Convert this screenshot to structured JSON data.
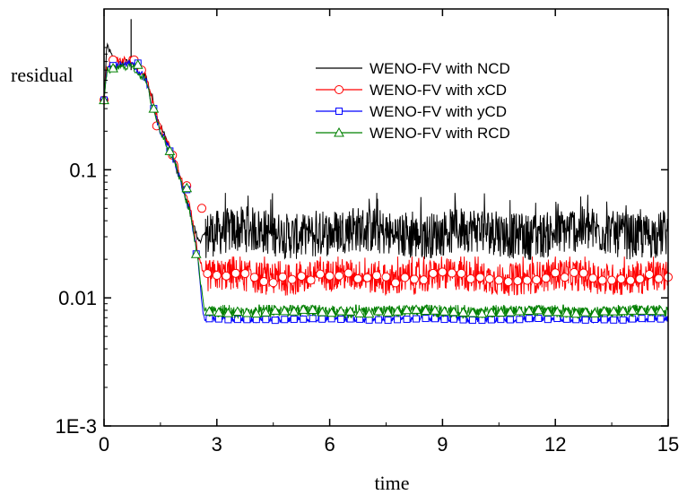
{
  "chart_data": {
    "type": "line",
    "title": "",
    "xlabel": "time",
    "ylabel": "residual",
    "xlim": [
      0,
      15
    ],
    "ylim": [
      0.001,
      1.8
    ],
    "yscale": "log",
    "xticks": [
      0,
      3,
      6,
      9,
      12,
      15
    ],
    "xtick_labels": [
      "0",
      "3",
      "6",
      "9",
      "12",
      "15"
    ],
    "yticks": [
      0.001,
      0.01,
      0.1
    ],
    "ytick_labels": [
      "1E-3",
      "0.01",
      "0.1"
    ],
    "grid": false,
    "legend_position": "top-right",
    "series": [
      {
        "name": "WENO-FV with NCD",
        "color": "#000000",
        "marker": "none",
        "transition": [
          [
            0,
            0.35
          ],
          [
            0.08,
            0.95
          ],
          [
            0.3,
            0.65
          ],
          [
            0.72,
            0.7
          ],
          [
            1.1,
            0.55
          ],
          [
            1.3,
            0.35
          ],
          [
            1.5,
            0.22
          ],
          [
            1.7,
            0.16
          ],
          [
            1.9,
            0.11
          ],
          [
            2.1,
            0.07
          ],
          [
            2.3,
            0.045
          ],
          [
            2.5,
            0.028
          ],
          [
            2.65,
            0.03
          ]
        ],
        "spikes": [
          [
            0.0,
            1.6
          ],
          [
            0.72,
            1.5
          ]
        ],
        "plateau": {
          "start": 2.7,
          "level": 0.032,
          "spread": 0.4,
          "max": 0.066
        }
      },
      {
        "name": "WENO-FV with xCD",
        "color": "#ff0000",
        "marker": "circle",
        "transition": [
          [
            0,
            0.35
          ],
          [
            0.08,
            0.65
          ],
          [
            0.3,
            0.7
          ],
          [
            0.72,
            0.72
          ],
          [
            1.1,
            0.55
          ],
          [
            1.3,
            0.33
          ],
          [
            1.5,
            0.21
          ],
          [
            1.7,
            0.16
          ],
          [
            1.9,
            0.12
          ],
          [
            2.1,
            0.075
          ],
          [
            2.3,
            0.048
          ],
          [
            2.5,
            0.022
          ],
          [
            2.65,
            0.015
          ]
        ],
        "plateau": {
          "start": 2.7,
          "level": 0.0145,
          "spread": 0.28,
          "max": 0.021
        },
        "markers_transition": [
          [
            0.0,
            0.35
          ],
          [
            0.24,
            0.72
          ],
          [
            0.8,
            0.72
          ],
          [
            1.0,
            0.6
          ],
          [
            1.4,
            0.22
          ],
          [
            1.82,
            0.13
          ],
          [
            2.2,
            0.075
          ],
          [
            2.6,
            0.05
          ]
        ]
      },
      {
        "name": "WENO-FV with yCD",
        "color": "#0000ff",
        "marker": "square",
        "transition": [
          [
            0,
            0.35
          ],
          [
            0.08,
            0.62
          ],
          [
            0.3,
            0.65
          ],
          [
            0.72,
            0.68
          ],
          [
            1.1,
            0.52
          ],
          [
            1.3,
            0.3
          ],
          [
            1.5,
            0.2
          ],
          [
            1.7,
            0.15
          ],
          [
            1.9,
            0.11
          ],
          [
            2.1,
            0.07
          ],
          [
            2.3,
            0.045
          ],
          [
            2.5,
            0.02
          ],
          [
            2.65,
            0.0068
          ]
        ],
        "plateau": {
          "start": 2.75,
          "level": 0.0068,
          "spread": 0.05,
          "max": 0.0072
        },
        "markers_transition": [
          [
            0.0,
            0.35
          ],
          [
            0.24,
            0.65
          ],
          [
            0.9,
            0.68
          ],
          [
            1.32,
            0.3
          ],
          [
            1.75,
            0.14
          ],
          [
            2.2,
            0.07
          ],
          [
            2.45,
            0.022
          ]
        ]
      },
      {
        "name": "WENO-FV with RCD",
        "color": "#008000",
        "marker": "triangle",
        "transition": [
          [
            0,
            0.35
          ],
          [
            0.08,
            0.6
          ],
          [
            0.3,
            0.62
          ],
          [
            0.72,
            0.65
          ],
          [
            1.1,
            0.5
          ],
          [
            1.3,
            0.3
          ],
          [
            1.5,
            0.2
          ],
          [
            1.7,
            0.15
          ],
          [
            1.9,
            0.11
          ],
          [
            2.1,
            0.07
          ],
          [
            2.3,
            0.045
          ],
          [
            2.5,
            0.02
          ],
          [
            2.65,
            0.0082
          ]
        ],
        "plateau": {
          "start": 2.75,
          "level": 0.0078,
          "spread": 0.1,
          "max": 0.0088
        },
        "markers_transition": [
          [
            0.0,
            0.35
          ],
          [
            0.24,
            0.62
          ],
          [
            0.9,
            0.66
          ],
          [
            1.32,
            0.3
          ],
          [
            1.75,
            0.14
          ],
          [
            2.2,
            0.072
          ],
          [
            2.45,
            0.022
          ]
        ]
      }
    ]
  }
}
